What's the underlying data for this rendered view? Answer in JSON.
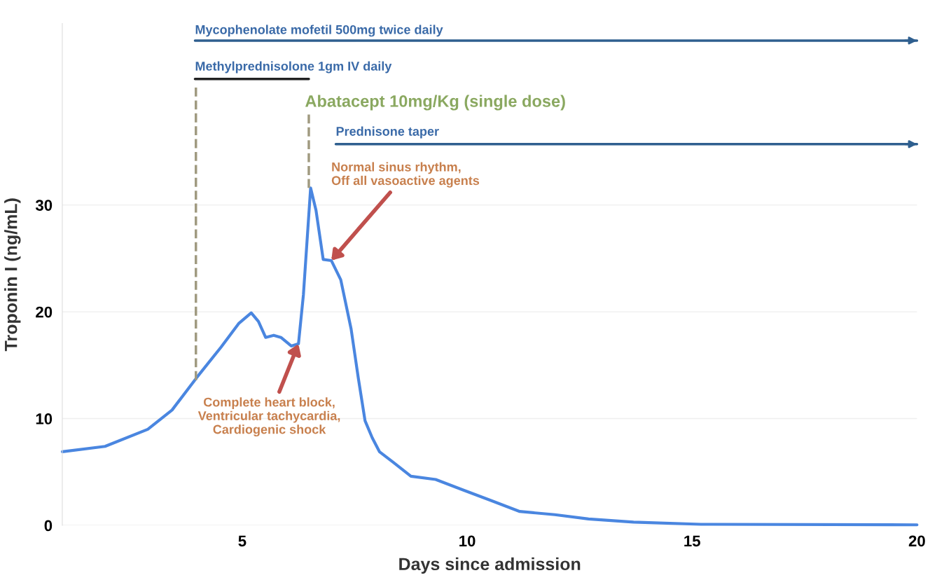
{
  "chart_data": {
    "type": "line",
    "xlabel": "Days since admission",
    "ylabel": "Troponin I (ng/mL)",
    "xlim": [
      1,
      20
    ],
    "xticks": [
      5,
      10,
      15,
      20
    ],
    "ylim": [
      0,
      47
    ],
    "yticks": [
      0,
      10,
      20,
      30
    ],
    "grid": "y",
    "legend": false,
    "marker": "none",
    "series": [
      {
        "color": "#4a86e0",
        "line_style": "solid",
        "x": [
          1.0,
          1.95,
          2.9,
          3.44,
          3.98,
          4.53,
          4.92,
          5.2,
          5.36,
          5.52,
          5.7,
          5.86,
          6.09,
          6.25,
          6.36,
          6.52,
          6.64,
          6.8,
          6.98,
          7.19,
          7.42,
          7.58,
          7.73,
          7.89,
          8.05,
          8.36,
          8.75,
          9.3,
          9.92,
          10.55,
          11.17,
          11.95,
          12.7,
          13.7,
          15.2,
          20.0
        ],
        "values": [
          6.9,
          7.4,
          9.0,
          10.8,
          13.8,
          16.7,
          18.9,
          19.9,
          19.1,
          17.6,
          17.8,
          17.6,
          16.8,
          17.0,
          21.6,
          31.6,
          29.5,
          24.9,
          24.8,
          23.0,
          18.4,
          13.8,
          9.8,
          8.2,
          6.9,
          5.9,
          4.6,
          4.3,
          3.3,
          2.3,
          1.3,
          1.0,
          0.6,
          0.3,
          0.1,
          0.05
        ]
      },
      {
        "color": "#2f5f8f",
        "line_style": "solid",
        "x": [
          3.95,
          20.0
        ],
        "values": [
          45.4,
          45.4
        ]
      },
      {
        "color": "#222222",
        "line_style": "solid",
        "x": [
          3.95,
          6.48
        ],
        "values": [
          41.8,
          41.8
        ]
      },
      {
        "color": "#2f5f8f",
        "line_style": "solid",
        "x": [
          7.08,
          20.0
        ],
        "values": [
          35.7,
          35.7
        ]
      },
      {
        "color": "#a09a80",
        "line_style": "dashed",
        "x": [
          3.97,
          3.97
        ],
        "values": [
          13.6,
          41.3
        ]
      },
      {
        "color": "#a09a80",
        "line_style": "dashed",
        "x": [
          6.48,
          6.48
        ],
        "values": [
          31.6,
          38.5
        ]
      }
    ],
    "annotations": [
      {
        "text": "Mycophenolate mofetil 500mg twice daily",
        "x": 3.95,
        "y": 45.4
      },
      {
        "text": "Methylprednisolone 1gm IV daily",
        "x": 3.95,
        "y": 41.8
      },
      {
        "text": "Abatacept 10mg/Kg (single dose)",
        "x": 6.48,
        "y": 38.5
      },
      {
        "text": "Prednisone taper",
        "x": 7.08,
        "y": 35.7
      },
      {
        "text": "Normal sinus rhythm,\nOff all vasoactive agents",
        "x": 6.98,
        "y": 24.8
      },
      {
        "text": "Complete heart block,\nVentricular tachycardia,\nCardiogenic shock",
        "x": 6.25,
        "y": 17.0
      }
    ]
  }
}
